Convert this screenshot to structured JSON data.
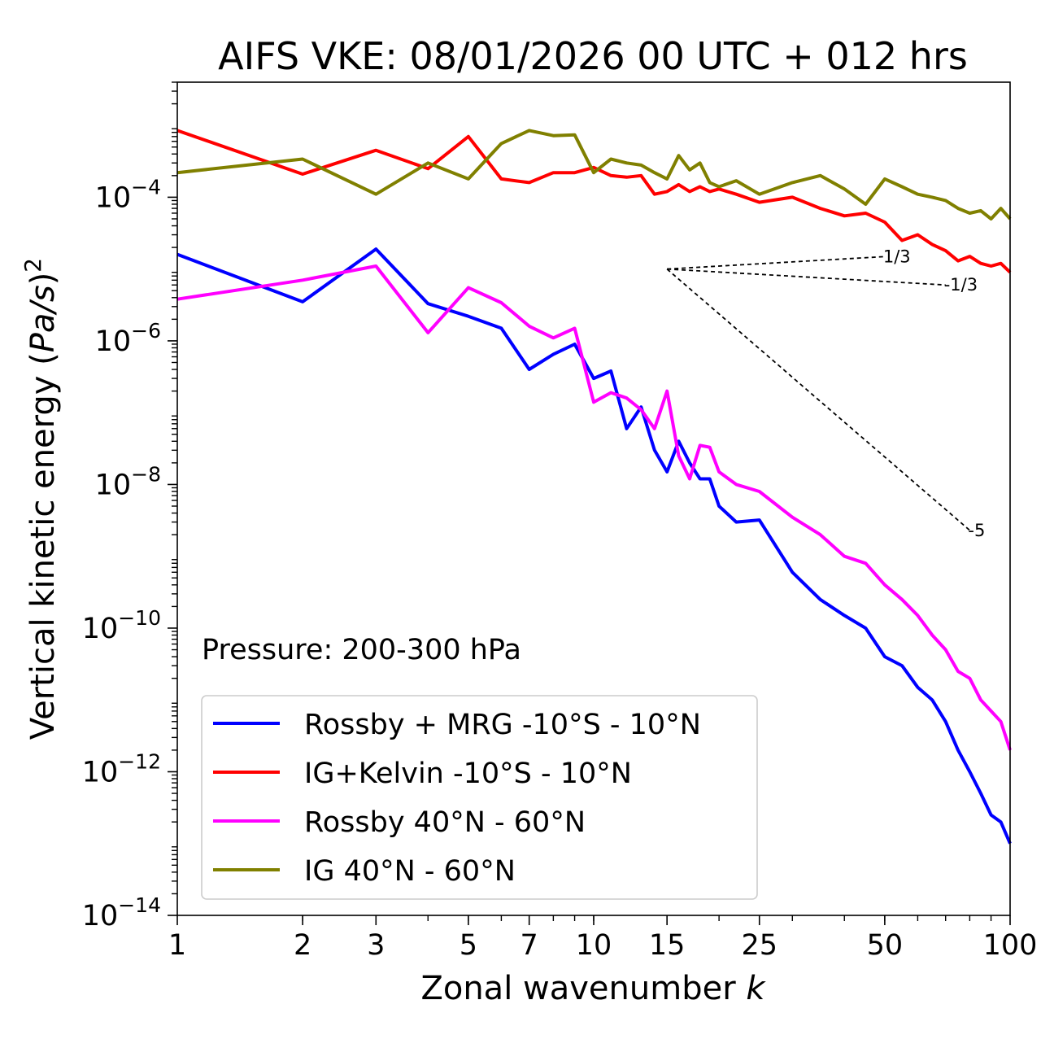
{
  "chart_data": {
    "type": "line",
    "title": "AIFS VKE: 08/01/2026 00 UTC + 012 hrs",
    "xlabel": "Zonal wavenumber k",
    "ylabel": "Vertical kinetic energy (Pa/s)^2",
    "xscale": "log",
    "yscale": "log",
    "xlim": [
      1,
      100
    ],
    "ylim": [
      1e-14,
      0.004
    ],
    "x_ticks": [
      1,
      2,
      3,
      5,
      7,
      10,
      15,
      25,
      50,
      100
    ],
    "x_tick_labels": [
      "1",
      "2",
      "3",
      "5",
      "7",
      "10",
      "15",
      "25",
      "50",
      "100"
    ],
    "y_ticks": [
      -14,
      -12,
      -10,
      -8,
      -6,
      -4
    ],
    "y_tick_labels": [
      "10",
      "10",
      "10",
      "10",
      "10",
      "10"
    ],
    "y_tick_exponents": [
      "−14",
      "−12",
      "−10",
      "−8",
      "−6",
      "−4"
    ],
    "ylabel_parts": {
      "text": "Vertical kinetic energy (",
      "italic": "Pa/s",
      "close": ")",
      "sup": "2"
    },
    "xlabel_parts": {
      "text": "Zonal wavenumber ",
      "italic": "k"
    },
    "annotation": "Pressure: 200-300 hPa",
    "legend_position": "lower-left",
    "reference_lines": [
      {
        "label": "1/3",
        "x": [
          15,
          50
        ],
        "y": [
          1e-05,
          1.49e-05
        ]
      },
      {
        "label": "-1/3",
        "x": [
          15,
          70
        ],
        "y": [
          1e-05,
          6e-06
        ]
      },
      {
        "label": "-5",
        "x": [
          15,
          80
        ],
        "y": [
          1e-05,
          2.3e-09
        ]
      }
    ],
    "series": [
      {
        "name": "Rossby + MRG -10°S - 10°N",
        "color": "#0000ff",
        "x": [
          1,
          2,
          3,
          4,
          5,
          6,
          7,
          8,
          9,
          10,
          11,
          12,
          13,
          14,
          15,
          16,
          17,
          18,
          19,
          20,
          22,
          25,
          30,
          35,
          40,
          45,
          50,
          55,
          60,
          65,
          70,
          75,
          80,
          85,
          90,
          95,
          100
        ],
        "y": [
          1.6e-05,
          3.5e-06,
          1.9e-05,
          3.3e-06,
          2.2e-06,
          1.5e-06,
          4e-07,
          6.5e-07,
          9e-07,
          3e-07,
          3.8e-07,
          6e-08,
          1.2e-07,
          3e-08,
          1.5e-08,
          4e-08,
          2e-08,
          1.2e-08,
          1.2e-08,
          5e-09,
          3e-09,
          3.2e-09,
          6e-10,
          2.5e-10,
          1.5e-10,
          1e-10,
          4e-11,
          3e-11,
          1.5e-11,
          1e-11,
          5e-12,
          2e-12,
          1e-12,
          5e-13,
          2.5e-13,
          2e-13,
          1e-13
        ]
      },
      {
        "name": "IG+Kelvin -10°S - 10°N",
        "color": "#ff0000",
        "x": [
          1,
          2,
          3,
          4,
          5,
          6,
          7,
          8,
          9,
          10,
          11,
          12,
          13,
          14,
          15,
          16,
          17,
          18,
          19,
          20,
          22,
          25,
          30,
          35,
          40,
          45,
          50,
          55,
          60,
          65,
          70,
          75,
          80,
          85,
          90,
          95,
          100
        ],
        "y": [
          0.00085,
          0.00021,
          0.00045,
          0.00025,
          0.0007,
          0.00018,
          0.00016,
          0.00022,
          0.00022,
          0.00026,
          0.0002,
          0.00019,
          0.0002,
          0.00011,
          0.00012,
          0.00015,
          0.00012,
          0.00014,
          0.00012,
          0.00013,
          0.00011,
          8.5e-05,
          0.0001,
          7e-05,
          5.5e-05,
          6e-05,
          4.5e-05,
          2.5e-05,
          3e-05,
          2.2e-05,
          1.8e-05,
          1.3e-05,
          1.5e-05,
          1.2e-05,
          1.1e-05,
          1.2e-05,
          9e-06
        ]
      },
      {
        "name": "Rossby 40°N - 60°N",
        "color": "#ff00ff",
        "x": [
          1,
          2,
          3,
          4,
          5,
          6,
          7,
          8,
          9,
          10,
          11,
          12,
          13,
          14,
          15,
          16,
          17,
          18,
          19,
          20,
          22,
          25,
          30,
          35,
          40,
          45,
          50,
          55,
          60,
          65,
          70,
          75,
          80,
          85,
          90,
          95,
          100
        ],
        "y": [
          3.8e-06,
          7e-06,
          1.1e-05,
          1.3e-06,
          5.5e-06,
          3.4e-06,
          1.6e-06,
          1.1e-06,
          1.5e-06,
          1.4e-07,
          1.9e-07,
          1.6e-07,
          1.1e-07,
          6e-08,
          2e-07,
          2.5e-08,
          1.2e-08,
          3.5e-08,
          3.3e-08,
          1.5e-08,
          1e-08,
          8e-09,
          3.5e-09,
          2e-09,
          1e-09,
          8e-10,
          4e-10,
          2.5e-10,
          1.5e-10,
          8e-11,
          5e-11,
          2.5e-11,
          2e-11,
          1e-11,
          7e-12,
          5e-12,
          2e-12
        ]
      },
      {
        "name": "IG 40°N - 60°N",
        "color": "#808000",
        "x": [
          1,
          2,
          3,
          4,
          5,
          6,
          7,
          8,
          9,
          10,
          11,
          12,
          13,
          14,
          15,
          16,
          17,
          18,
          19,
          20,
          22,
          25,
          30,
          35,
          40,
          45,
          50,
          55,
          60,
          65,
          70,
          75,
          80,
          85,
          90,
          95,
          100
        ],
        "y": [
          0.00022,
          0.00034,
          0.00011,
          0.0003,
          0.00018,
          0.00056,
          0.00085,
          0.00072,
          0.00074,
          0.00022,
          0.00034,
          0.0003,
          0.00028,
          0.00022,
          0.00018,
          0.00038,
          0.00024,
          0.0003,
          0.00016,
          0.00014,
          0.00017,
          0.00011,
          0.00016,
          0.0002,
          0.00013,
          8e-05,
          0.00018,
          0.00014,
          0.00011,
          0.0001,
          9e-05,
          7e-05,
          6e-05,
          6.5e-05,
          5e-05,
          7e-05,
          5e-05
        ]
      }
    ]
  }
}
